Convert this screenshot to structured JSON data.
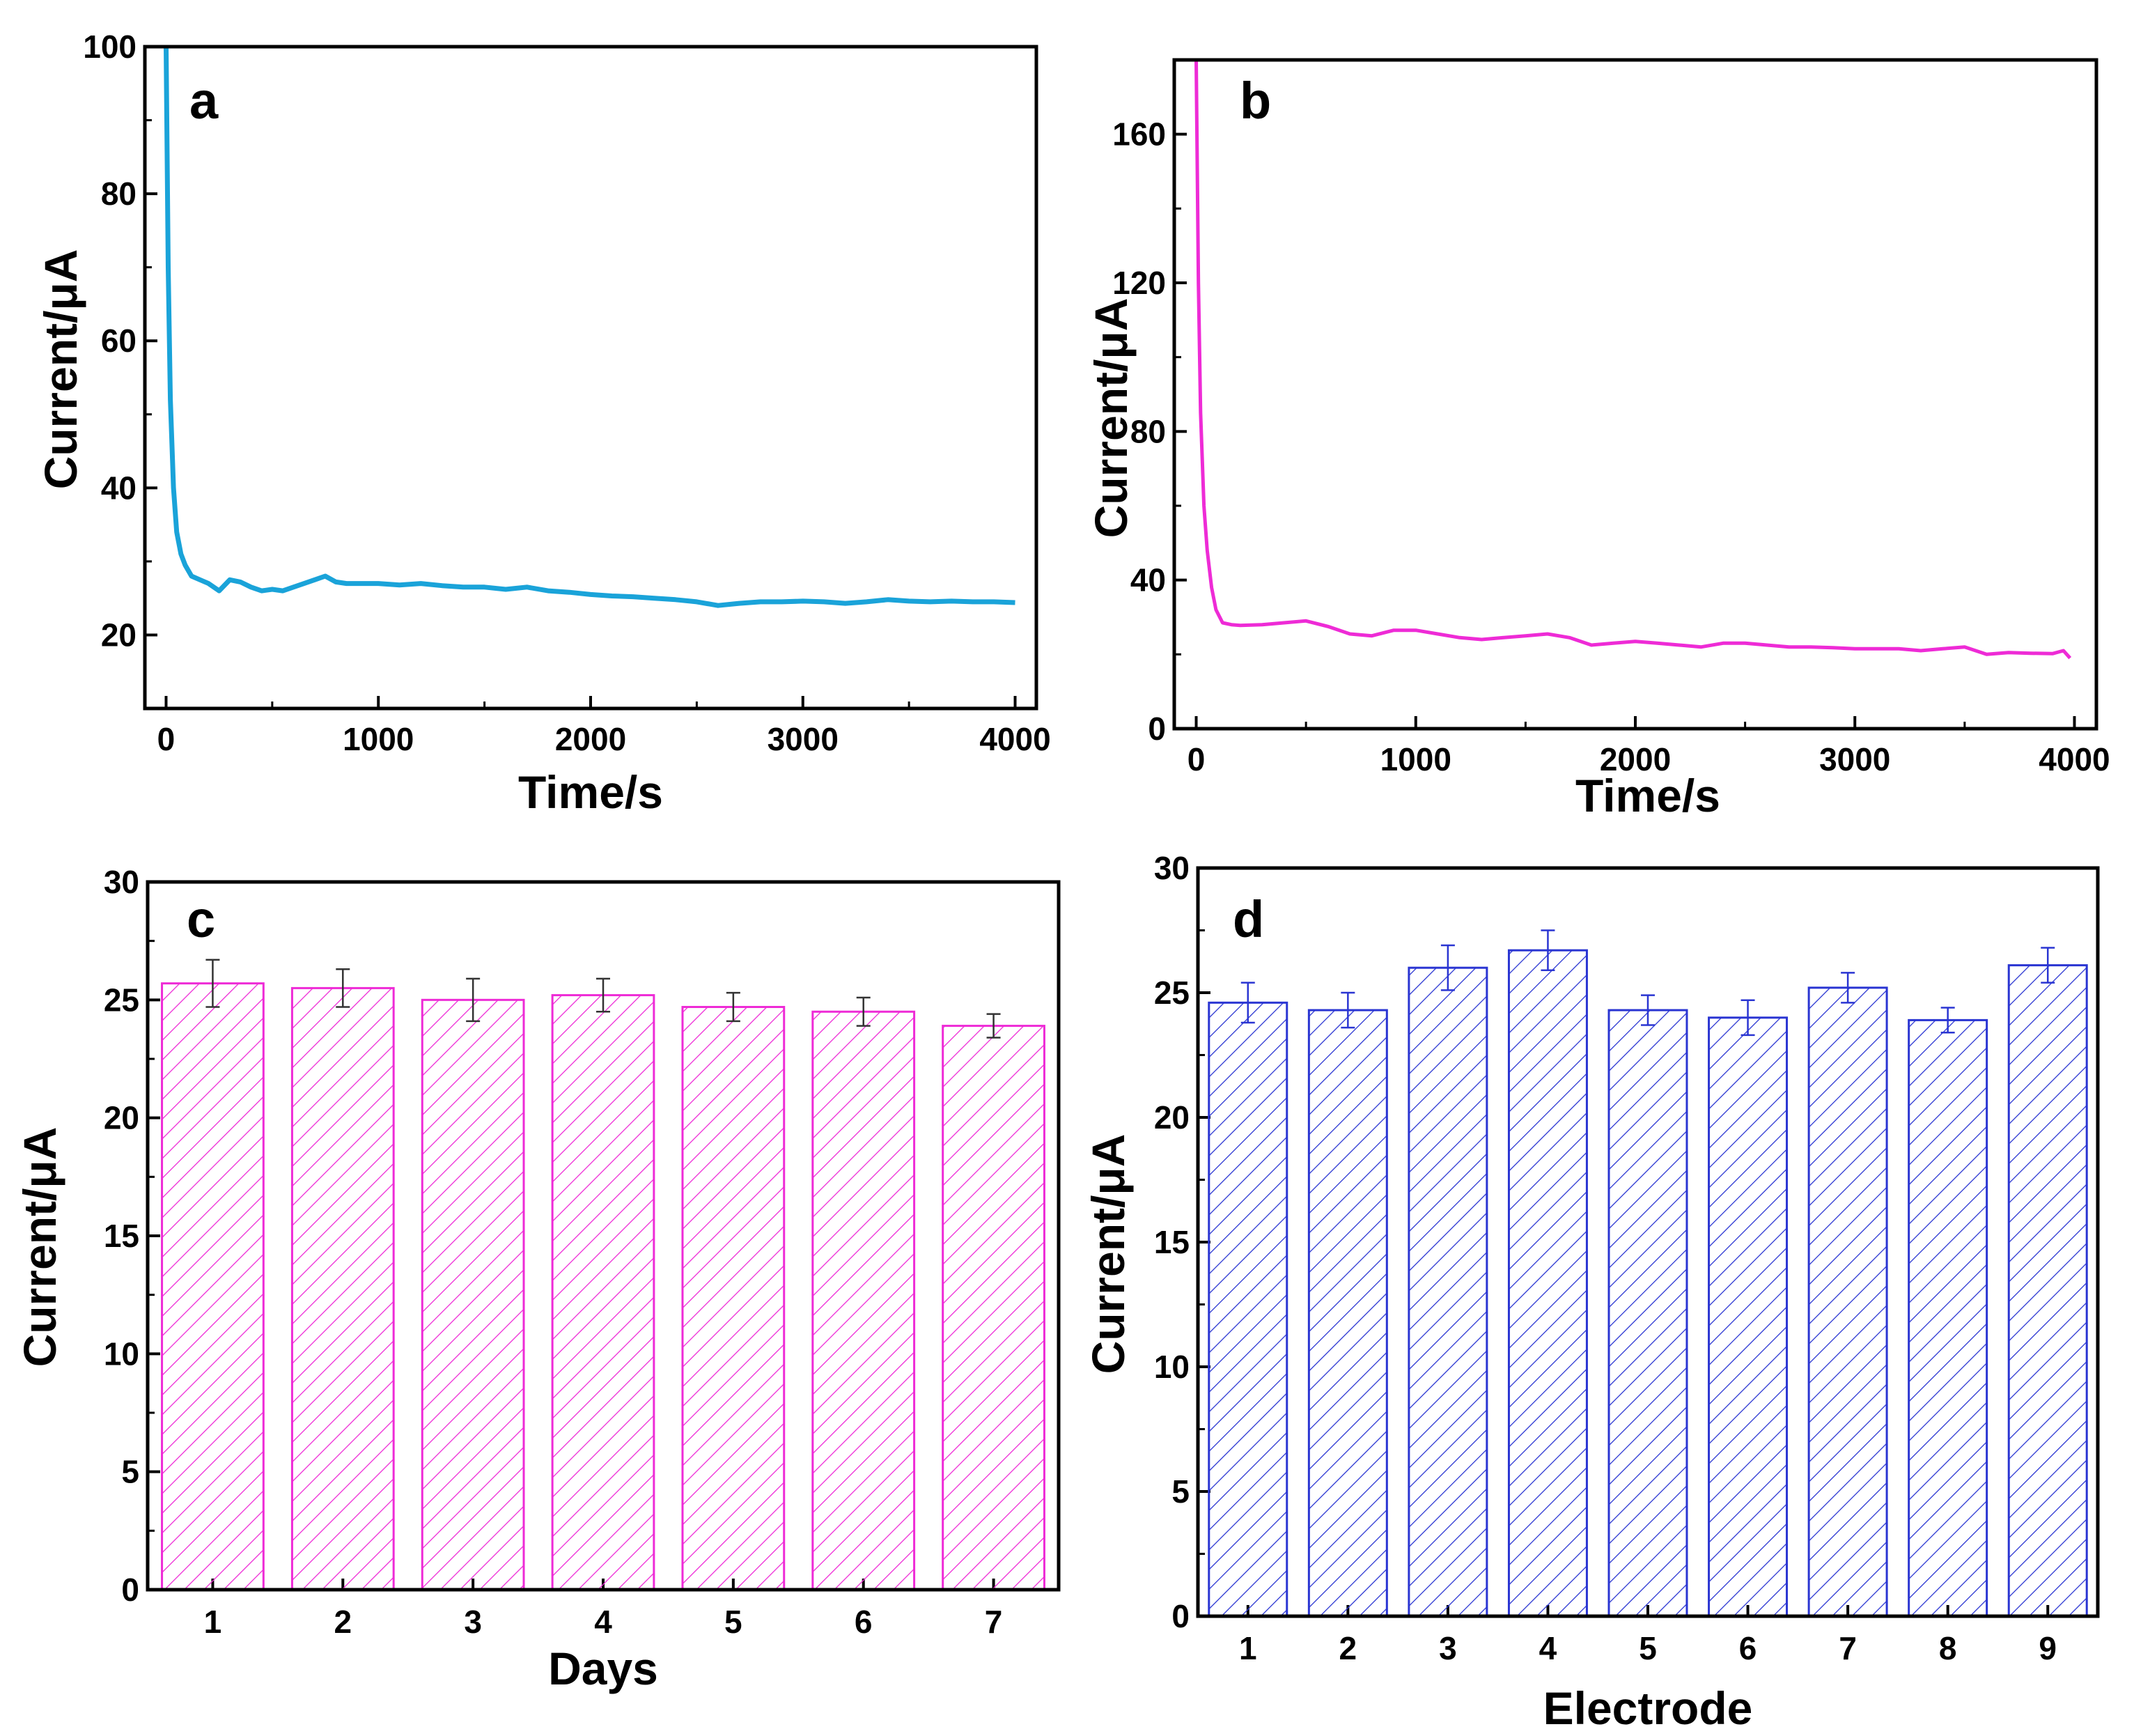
{
  "chart_data": [
    {
      "panel": "a",
      "type": "line",
      "xlabel": "Time/s",
      "ylabel": "Current/μA",
      "xlim": [
        -100,
        4100
      ],
      "ylim": [
        10,
        100
      ],
      "xticks": [
        0,
        1000,
        2000,
        3000,
        4000
      ],
      "yticks": [
        20,
        40,
        60,
        80,
        100
      ],
      "color": "#1aa3d9",
      "series": [
        {
          "name": "a",
          "x": [
            0,
            10,
            20,
            35,
            50,
            70,
            90,
            120,
            160,
            200,
            250,
            300,
            350,
            400,
            450,
            500,
            550,
            600,
            650,
            700,
            750,
            800,
            850,
            900,
            950,
            1000,
            1100,
            1200,
            1300,
            1400,
            1500,
            1600,
            1700,
            1800,
            1900,
            2000,
            2100,
            2200,
            2300,
            2400,
            2500,
            2600,
            2700,
            2800,
            2900,
            3000,
            3100,
            3200,
            3300,
            3400,
            3500,
            3600,
            3700,
            3800,
            3900,
            4000
          ],
          "y": [
            100,
            70,
            52,
            40,
            34,
            31,
            29.5,
            28,
            27.5,
            27,
            26,
            27.5,
            27.2,
            26.5,
            26,
            26.2,
            26,
            26.5,
            27,
            27.5,
            28,
            27.2,
            27,
            27,
            27,
            27,
            26.8,
            27,
            26.7,
            26.5,
            26.5,
            26.2,
            26.5,
            26,
            25.8,
            25.5,
            25.3,
            25.2,
            25,
            24.8,
            24.5,
            24,
            24.3,
            24.5,
            24.5,
            24.6,
            24.5,
            24.3,
            24.5,
            24.8,
            24.6,
            24.5,
            24.6,
            24.5,
            24.5,
            24.4
          ]
        }
      ]
    },
    {
      "panel": "b",
      "type": "line",
      "xlabel": "Time/s",
      "ylabel": "Current/μA",
      "xlim": [
        -100,
        4100
      ],
      "ylim": [
        0,
        180
      ],
      "xticks": [
        0,
        1000,
        2000,
        3000,
        4000
      ],
      "yticks": [
        0,
        40,
        80,
        120,
        160
      ],
      "color": "#ee2bd6",
      "series": [
        {
          "name": "b",
          "x": [
            0,
            10,
            20,
            35,
            50,
            70,
            90,
            120,
            160,
            200,
            300,
            400,
            500,
            600,
            700,
            800,
            900,
            1000,
            1100,
            1200,
            1300,
            1400,
            1500,
            1600,
            1700,
            1800,
            1900,
            2000,
            2100,
            2200,
            2300,
            2400,
            2500,
            2600,
            2700,
            2800,
            2900,
            3000,
            3100,
            3200,
            3300,
            3400,
            3500,
            3550,
            3600,
            3700,
            3800,
            3900,
            3950,
            3980
          ],
          "y": [
            180,
            120,
            85,
            60,
            48,
            38,
            32,
            28.5,
            28,
            27.8,
            28,
            28.5,
            29,
            27.5,
            25.5,
            25,
            26.5,
            26.5,
            25.5,
            24.5,
            24,
            24.5,
            25,
            25.5,
            24.5,
            22.5,
            23,
            23.5,
            23,
            22.5,
            22,
            23,
            23,
            22.5,
            22,
            22,
            21.8,
            21.5,
            21.5,
            21.5,
            21,
            21.5,
            22,
            21,
            20,
            20.5,
            20.3,
            20.2,
            21,
            19
          ]
        }
      ]
    },
    {
      "panel": "c",
      "type": "bar",
      "xlabel": "Days",
      "ylabel": "Current/μA",
      "ylim": [
        0,
        30
      ],
      "yticks": [
        0,
        5,
        10,
        15,
        20,
        25,
        30
      ],
      "color": "#ee2bd6",
      "categories": [
        "1",
        "2",
        "3",
        "4",
        "5",
        "6",
        "7"
      ],
      "values": [
        25.7,
        25.5,
        25.0,
        25.2,
        24.7,
        24.5,
        23.9
      ],
      "errors": [
        1.0,
        0.8,
        0.9,
        0.7,
        0.6,
        0.6,
        0.5
      ]
    },
    {
      "panel": "d",
      "type": "bar",
      "xlabel": "Electrode",
      "ylabel": "Current/μA",
      "ylim": [
        0,
        30
      ],
      "yticks": [
        0,
        5,
        10,
        15,
        20,
        25,
        30
      ],
      "color": "#2a35d2",
      "categories": [
        "1",
        "2",
        "3",
        "4",
        "5",
        "6",
        "7",
        "8",
        "9"
      ],
      "values": [
        24.6,
        24.3,
        26.0,
        26.7,
        24.3,
        24.0,
        25.2,
        23.9,
        26.1
      ],
      "errors": [
        0.8,
        0.7,
        0.9,
        0.8,
        0.6,
        0.7,
        0.6,
        0.5,
        0.7
      ]
    }
  ]
}
